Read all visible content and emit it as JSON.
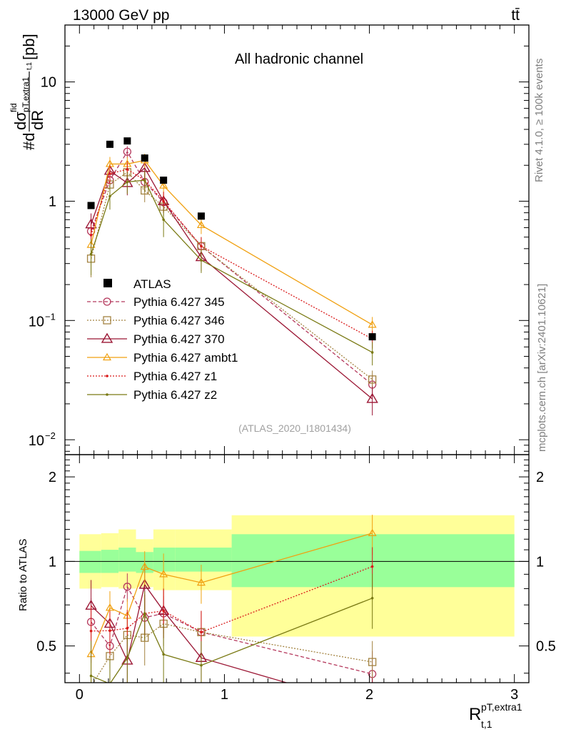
{
  "header": {
    "energy_label": "13000 GeV pp",
    "process_label": "tt̄",
    "rivet_label": "Rivet 4.1.0, ≥ 100k events",
    "source_label": "mcplots.cern.ch [arXiv:2401.10621]"
  },
  "chart_data": {
    "type": "line",
    "title": "All hadronic channel",
    "analysis_id": "(ATLAS_2020_I1801434)",
    "ylabel": "#d dσ^fid_pT,extra1 t,1 / dR [pb]",
    "ylabel_parts": {
      "prefix": "#d",
      "numerator": "dσ",
      "sup": "fid",
      "sub": "pT,extra1",
      "sub2": "t,1",
      "denominator": "dR",
      "unit": "[pb]"
    },
    "xlabel": "R^pT,extra1_t,1",
    "xlabel_parts": {
      "base": "R",
      "sup": "pT,extra1",
      "sub": "t,1"
    },
    "xlim": [
      -0.1,
      3.1
    ],
    "ylim": [
      0.0075,
      30
    ],
    "yscale": "log",
    "x_ticks": [
      "0",
      "1",
      "2",
      "3"
    ],
    "y_ticks": [
      {
        "value": 10,
        "label": "10",
        "exp": ""
      },
      {
        "value": 1,
        "label": "1",
        "exp": ""
      },
      {
        "value": 0.1,
        "label": "10",
        "exp": "−1"
      },
      {
        "value": 0.01,
        "label": "10",
        "exp": "−2"
      }
    ],
    "legend_position": "middle-left",
    "bins": [
      {
        "lo": 0.0,
        "hi": 0.15,
        "center": 0.08
      },
      {
        "lo": 0.15,
        "hi": 0.27,
        "center": 0.21
      },
      {
        "lo": 0.27,
        "hi": 0.39,
        "center": 0.33
      },
      {
        "lo": 0.39,
        "hi": 0.51,
        "center": 0.45
      },
      {
        "lo": 0.51,
        "hi": 0.66,
        "center": 0.58
      },
      {
        "lo": 0.66,
        "hi": 1.05,
        "center": 0.84
      },
      {
        "lo": 1.05,
        "hi": 3.0,
        "center": 2.02
      }
    ],
    "data": {
      "name": "ATLAS",
      "color": "#000000",
      "values": [
        0.92,
        3.0,
        3.2,
        2.3,
        1.5,
        0.75,
        0.073
      ]
    },
    "series": [
      {
        "name": "Pythia 6.427 345",
        "color": "#b5395d",
        "marker": "circle",
        "dash": "5,3",
        "values": [
          0.56,
          1.5,
          2.6,
          1.45,
          0.98,
          0.42,
          0.029
        ],
        "errors": [
          0.12,
          0.25,
          0.3,
          0.25,
          0.15,
          0.08,
          0.006
        ]
      },
      {
        "name": "Pythia 6.427 346",
        "color": "#a38341",
        "marker": "square",
        "dash": "2,2",
        "values": [
          0.33,
          1.38,
          1.75,
          1.23,
          0.9,
          0.42,
          0.032
        ],
        "errors": [
          0.1,
          0.25,
          0.3,
          0.25,
          0.15,
          0.08,
          0.006
        ]
      },
      {
        "name": "Pythia 6.427 370",
        "color": "#9b1634",
        "marker": "triangle",
        "dash": "",
        "values": [
          0.64,
          1.8,
          1.42,
          1.9,
          1.0,
          0.34,
          0.022
        ],
        "errors": [
          0.15,
          0.3,
          0.3,
          0.35,
          0.2,
          0.08,
          0.006
        ]
      },
      {
        "name": "Pythia 6.427 ambt1",
        "color": "#f0a010",
        "marker": "triangle-small",
        "dash": "",
        "values": [
          0.43,
          2.05,
          2.05,
          2.2,
          1.35,
          0.63,
          0.092
        ],
        "errors": [
          0.1,
          0.3,
          0.3,
          0.3,
          0.25,
          0.1,
          0.015
        ]
      },
      {
        "name": "Pythia 6.427 z1",
        "color": "#d91a1a",
        "marker": "dot",
        "dash": "2,2",
        "values": [
          0.52,
          1.7,
          1.85,
          1.5,
          1.0,
          0.42,
          0.07
        ],
        "errors": [
          0.12,
          0.3,
          0.3,
          0.25,
          0.2,
          0.08,
          0.012
        ]
      },
      {
        "name": "Pythia 6.427 z2",
        "color": "#7a7a14",
        "marker": "dot",
        "dash": "",
        "values": [
          0.36,
          1.1,
          1.45,
          1.5,
          0.7,
          0.32,
          0.054
        ],
        "errors": [
          0.12,
          0.25,
          0.3,
          0.3,
          0.2,
          0.07,
          0.012
        ]
      }
    ],
    "ratio": {
      "ylabel": "Ratio to ATLAS",
      "ylim": [
        0.37,
        2.4
      ],
      "yscale": "log",
      "y_ticks": [
        {
          "value": 2,
          "label": "2"
        },
        {
          "value": 1,
          "label": "1"
        },
        {
          "value": 0.5,
          "label": "0.5"
        }
      ],
      "band_inner": [
        [
          0.91,
          1.09
        ],
        [
          0.91,
          1.1
        ],
        [
          0.92,
          1.12
        ],
        [
          0.91,
          1.08
        ],
        [
          0.92,
          1.12
        ],
        [
          0.92,
          1.12
        ],
        [
          0.81,
          1.25
        ]
      ],
      "band_outer": [
        [
          0.8,
          1.25
        ],
        [
          0.81,
          1.26
        ],
        [
          0.8,
          1.3
        ],
        [
          0.81,
          1.2
        ],
        [
          0.79,
          1.3
        ],
        [
          0.79,
          1.3
        ],
        [
          0.54,
          1.46
        ]
      ]
    }
  }
}
